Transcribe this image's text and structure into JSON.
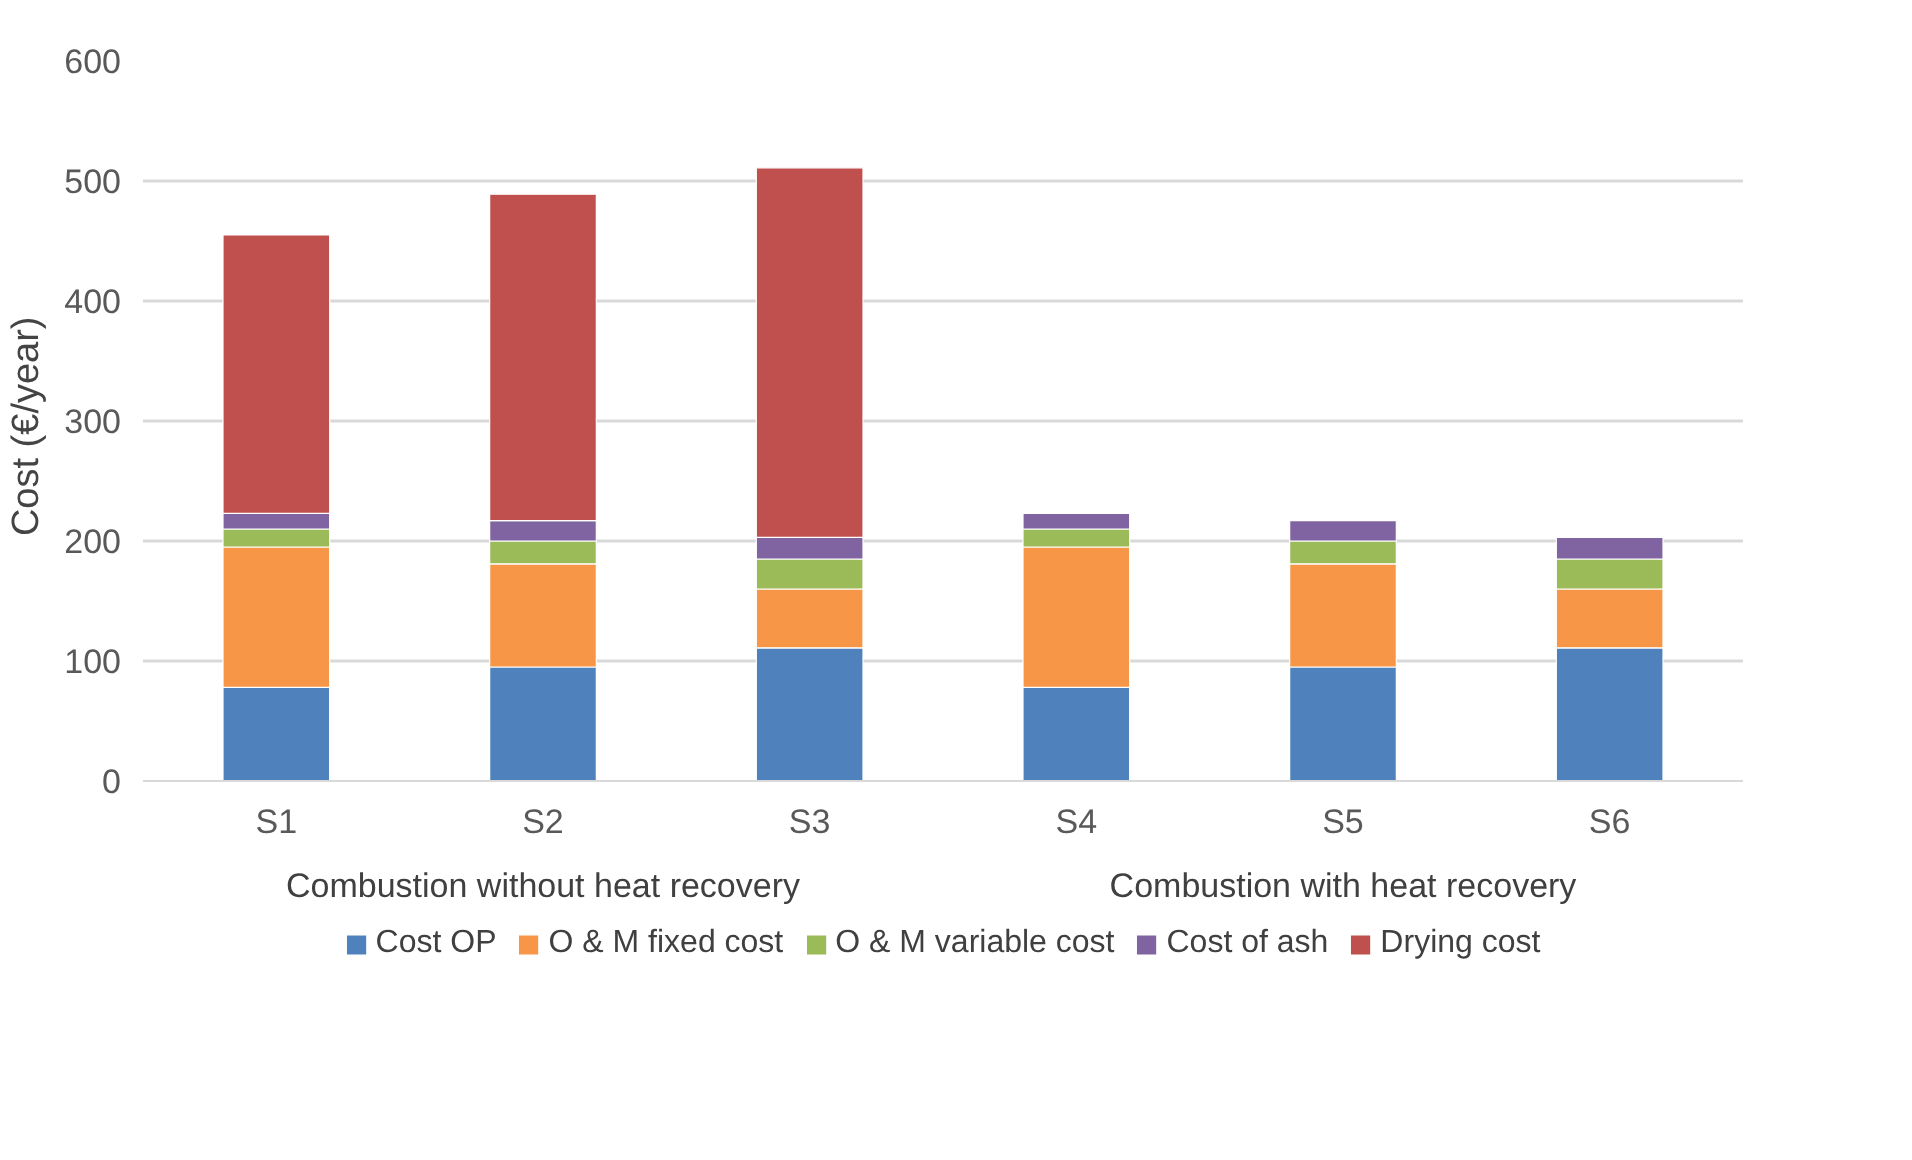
{
  "chart_data": {
    "type": "bar",
    "stacked": true,
    "ylabel": "Cost  (€/year)",
    "categories": [
      "S1",
      "S2",
      "S3",
      "S4",
      "S5",
      "S6"
    ],
    "annotations": [
      "Combustion without heat recovery",
      "Combustion with heat recovery"
    ],
    "series": [
      {
        "name": "Cost OP",
        "color": "#4f81bd",
        "values": [
          78,
          95,
          111,
          78,
          95,
          111
        ]
      },
      {
        "name": "O & M fixed cost",
        "color": "#f79646",
        "values": [
          117,
          86,
          49,
          117,
          86,
          49
        ]
      },
      {
        "name": "O & M variable cost",
        "color": "#9bbb59",
        "values": [
          15,
          19,
          25,
          15,
          19,
          25
        ]
      },
      {
        "name": "Cost of ash",
        "color": "#8064a2",
        "values": [
          13,
          17,
          18,
          13,
          17,
          18
        ]
      },
      {
        "name": "Drying cost",
        "color": "#c0504d",
        "values": [
          232,
          272,
          308,
          null,
          null,
          null
        ]
      }
    ],
    "ylim": [
      0,
      600
    ],
    "yticks": [
      0,
      100,
      200,
      300,
      400,
      500,
      600
    ],
    "grid": "y",
    "legend": "bottom"
  }
}
